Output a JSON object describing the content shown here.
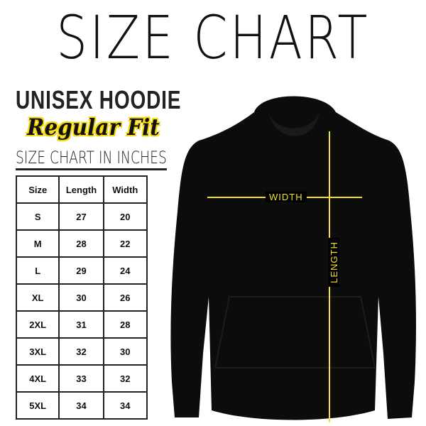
{
  "title": "SIZE CHART",
  "product": "UNISEX HOODIE",
  "fit": "Regular Fit",
  "units_heading": "SIZE CHART IN INCHES",
  "table": {
    "headers": [
      "Size",
      "Length",
      "Width"
    ],
    "rows": [
      [
        "S",
        "27",
        "20"
      ],
      [
        "M",
        "28",
        "22"
      ],
      [
        "L",
        "29",
        "24"
      ],
      [
        "XL",
        "30",
        "26"
      ],
      [
        "2XL",
        "31",
        "28"
      ],
      [
        "3XL",
        "32",
        "30"
      ],
      [
        "4XL",
        "33",
        "32"
      ],
      [
        "5XL",
        "34",
        "34"
      ]
    ]
  },
  "measure_labels": {
    "width": "WIDTH",
    "length": "LENGTH"
  },
  "colors": {
    "accent": "#f2e12b",
    "garment": "#0c0c0c"
  }
}
